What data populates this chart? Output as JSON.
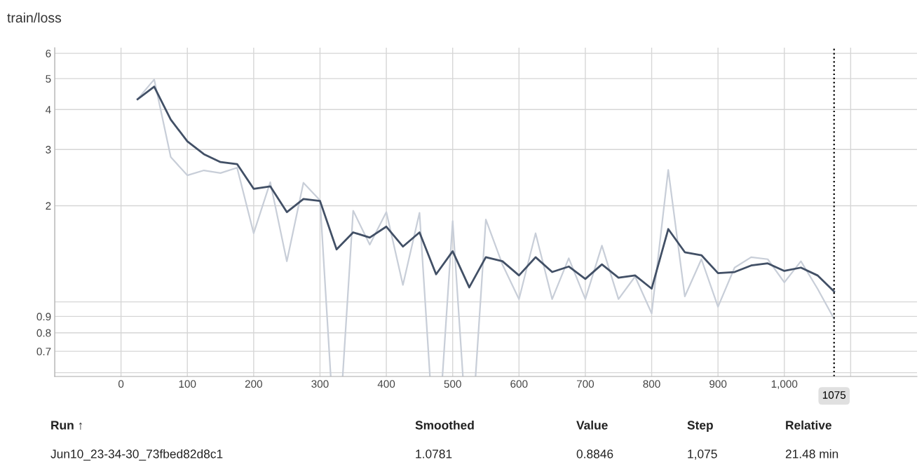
{
  "chart_data": {
    "type": "line",
    "title": "train/loss",
    "x": [
      25,
      50,
      75,
      100,
      125,
      150,
      175,
      200,
      225,
      250,
      275,
      300,
      325,
      350,
      375,
      400,
      425,
      450,
      475,
      500,
      525,
      550,
      575,
      600,
      625,
      650,
      675,
      700,
      725,
      750,
      775,
      800,
      825,
      850,
      875,
      900,
      925,
      950,
      975,
      1000,
      1025,
      1050,
      1075
    ],
    "series": [
      {
        "color": "#c8ced8",
        "values": [
          4.31,
          4.97,
          2.84,
          2.49,
          2.58,
          2.53,
          2.63,
          1.64,
          2.37,
          1.34,
          2.36,
          2.08,
          null,
          1.93,
          1.51,
          1.91,
          1.13,
          1.9,
          null,
          1.79,
          null,
          1.81,
          1.31,
          1.02,
          1.64,
          1.02,
          1.37,
          1.02,
          1.5,
          1.02,
          1.2,
          0.92,
          2.59,
          1.04,
          1.36,
          0.965,
          1.28,
          1.38,
          1.36,
          1.15,
          1.34,
          1.1,
          0.8846
        ]
      },
      {
        "color": "#425066",
        "values": [
          4.31,
          4.72,
          3.72,
          3.18,
          2.9,
          2.74,
          2.7,
          2.26,
          2.3,
          1.91,
          2.1,
          2.07,
          1.46,
          1.65,
          1.59,
          1.72,
          1.49,
          1.65,
          1.22,
          1.44,
          1.11,
          1.38,
          1.34,
          1.21,
          1.38,
          1.24,
          1.29,
          1.18,
          1.31,
          1.19,
          1.21,
          1.1,
          1.69,
          1.43,
          1.4,
          1.23,
          1.24,
          1.3,
          1.32,
          1.25,
          1.28,
          1.21,
          1.0781
        ]
      }
    ],
    "log": "y",
    "xlim": [
      -100,
      1200
    ],
    "xticks": [
      {
        "value": -100,
        "label": null
      },
      0,
      100,
      200,
      300,
      400,
      500,
      600,
      700,
      800,
      900,
      {
        "value": 1000,
        "label": "1,000"
      },
      {
        "value": 1100,
        "label": null
      }
    ],
    "ylim": [
      0.584,
      6.25
    ],
    "yticks": [
      {
        "value": 0.6,
        "label": null
      },
      0.7,
      0.8,
      0.9,
      {
        "value": 1,
        "label": null
      },
      2,
      3,
      4,
      5,
      6
    ],
    "grid": true,
    "line_style": "solid",
    "marker": "none",
    "ref_lines": [
      {
        "axis": "x",
        "value": 1075,
        "label": "1075",
        "line_style": "dotted",
        "color": "#000000"
      }
    ],
    "annotations": [
      "Run ↑",
      "Smoothed",
      "Value",
      "Step",
      "Relative",
      "Jun10_23-34-30_73fbed82d8c1",
      "1.0781",
      "0.8846",
      "1,075",
      "21.48 min"
    ]
  }
}
